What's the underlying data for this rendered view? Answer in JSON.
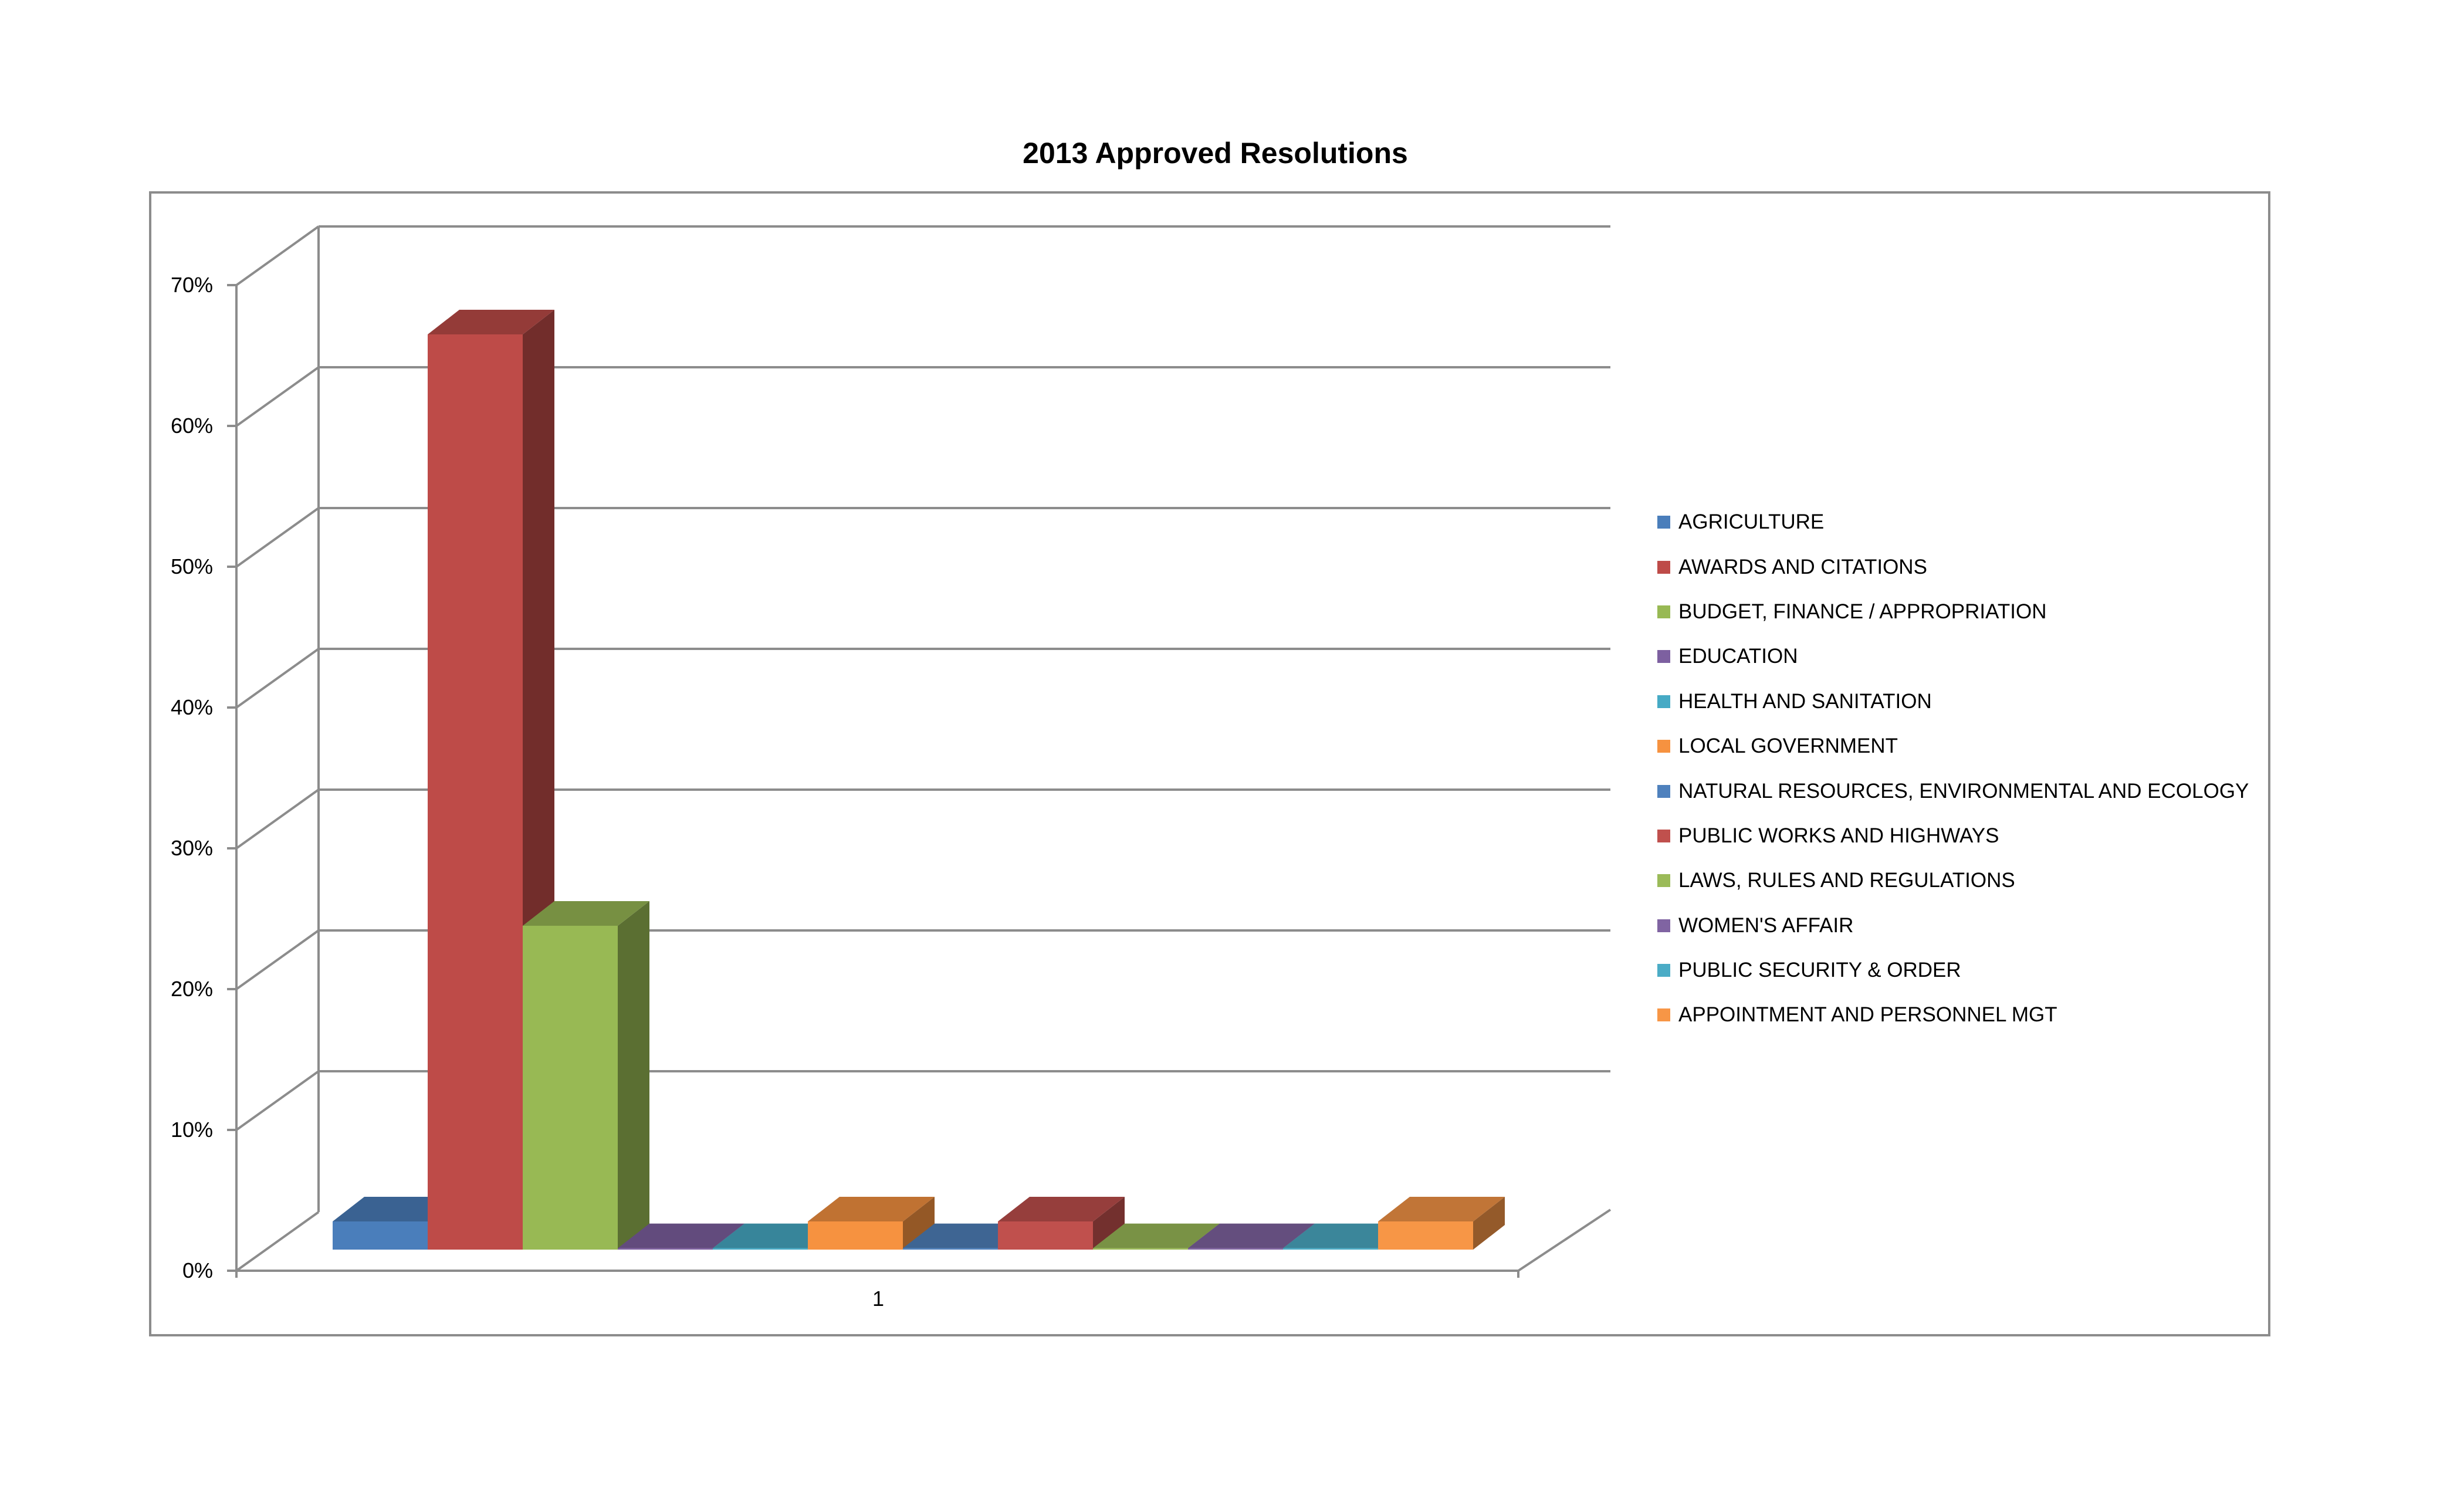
{
  "chart_data": {
    "type": "bar",
    "title": "2013 Approved Resolutions",
    "xlabel": "",
    "ylabel": "",
    "categories": [
      "1"
    ],
    "ylim": [
      0,
      0.7
    ],
    "yticks": [
      "0%",
      "10%",
      "20%",
      "30%",
      "40%",
      "50%",
      "60%",
      "70%"
    ],
    "grid": true,
    "legend_position": "right",
    "three_d": true,
    "series": [
      {
        "name": "AGRICULTURE",
        "values": [
          0.02
        ],
        "color": "#4a7ebb"
      },
      {
        "name": "AWARDS AND CITATIONS",
        "values": [
          0.65
        ],
        "color": "#be4b48"
      },
      {
        "name": "BUDGET, FINANCE / APPROPRIATION",
        "values": [
          0.23
        ],
        "color": "#98b954"
      },
      {
        "name": "EDUCATION",
        "values": [
          0.001
        ],
        "color": "#7d60a0"
      },
      {
        "name": "HEALTH AND SANITATION",
        "values": [
          0.001
        ],
        "color": "#46aac5"
      },
      {
        "name": "LOCAL GOVERNMENT",
        "values": [
          0.02
        ],
        "color": "#f69240"
      },
      {
        "name": "NATURAL RESOURCES, ENVIRONMENTAL AND ECOLOGY",
        "values": [
          0.001
        ],
        "color": "#4f81bd"
      },
      {
        "name": "PUBLIC WORKS AND HIGHWAYS",
        "values": [
          0.02
        ],
        "color": "#c0504d"
      },
      {
        "name": "LAWS, RULES AND REGULATIONS",
        "values": [
          0.001
        ],
        "color": "#9bbb59"
      },
      {
        "name": "WOMEN'S AFFAIR",
        "values": [
          0.001
        ],
        "color": "#8064a2"
      },
      {
        "name": "PUBLIC SECURITY & ORDER",
        "values": [
          0.001
        ],
        "color": "#4bacc6"
      },
      {
        "name": "APPOINTMENT AND PERSONNEL MGT",
        "values": [
          0.02
        ],
        "color": "#f79646"
      }
    ]
  }
}
